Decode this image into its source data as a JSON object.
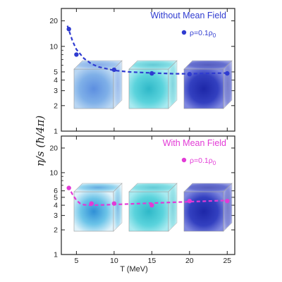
{
  "colors": {
    "background": "#ffffff",
    "without_series": "#2f3bd0",
    "with_series": "#e23ad6",
    "axis": "#222222",
    "cube_blue_light": "#7fb0e8",
    "cube_cyan": "#4fd0d8",
    "cube_navy": "#3340c0"
  },
  "chart_data": [
    {
      "type": "scatter",
      "title": "Without Mean Field",
      "ylabel": "η/s (ħ/4π)",
      "xlabel": "",
      "xlim": [
        3,
        26
      ],
      "ylim": [
        1,
        28
      ],
      "yscale": "log",
      "yticks": [
        1,
        2,
        3,
        4,
        5,
        10,
        20
      ],
      "yticklabels": [
        "1",
        "2",
        "3",
        "4",
        "5",
        "10",
        "20"
      ],
      "xticks": [
        5,
        10,
        15,
        20,
        25
      ],
      "xticklabels": [
        "",
        "",
        "",
        "",
        ""
      ],
      "legend_position": "top-right",
      "series": [
        {
          "name": "ρ=0.1ρ",
          "name_subscript": "0",
          "x": [
            4,
            5,
            10,
            15,
            20,
            25
          ],
          "y": [
            16,
            8,
            5.3,
            4.8,
            4.7,
            4.8
          ],
          "fit_x": [
            3.8,
            4.5,
            5,
            6,
            7,
            8,
            10,
            12,
            15,
            18,
            20,
            25
          ],
          "fit_y": [
            17.5,
            11.5,
            9.2,
            7.2,
            6.2,
            5.7,
            5.2,
            5.0,
            4.85,
            4.75,
            4.75,
            4.85
          ]
        }
      ],
      "insets": [
        "light blue cube",
        "cyan cube",
        "dark blue cube"
      ]
    },
    {
      "type": "scatter",
      "title": "With Mean Field",
      "ylabel": "",
      "xlabel": "T (MeV)",
      "xlim": [
        3,
        26
      ],
      "ylim": [
        1,
        28
      ],
      "yscale": "log",
      "yticks": [
        1,
        2,
        3,
        4,
        5,
        6,
        10,
        20
      ],
      "yticklabels": [
        "1",
        "2",
        "3",
        "4",
        "5",
        "6",
        "10",
        "20"
      ],
      "xticks": [
        5,
        10,
        15,
        20,
        25
      ],
      "xticklabels": [
        "5",
        "10",
        "15",
        "20",
        "25"
      ],
      "legend_position": "top-right",
      "series": [
        {
          "name": "ρ=0.1ρ",
          "name_subscript": "0",
          "x": [
            4,
            7,
            10,
            15,
            20,
            25
          ],
          "y": [
            6.5,
            4.2,
            4.2,
            4.0,
            4.5,
            4.5
          ],
          "fit_x": [
            3.9,
            4.5,
            5,
            5.5,
            6,
            7,
            9,
            12,
            15,
            18,
            20,
            25
          ],
          "fit_y": [
            6.8,
            5.4,
            4.6,
            4.2,
            4.05,
            4.0,
            4.05,
            4.15,
            4.25,
            4.35,
            4.42,
            4.58
          ]
        }
      ],
      "insets": [
        "blue-cyan sparse cube",
        "cyan cube",
        "dark blue cube"
      ]
    }
  ]
}
